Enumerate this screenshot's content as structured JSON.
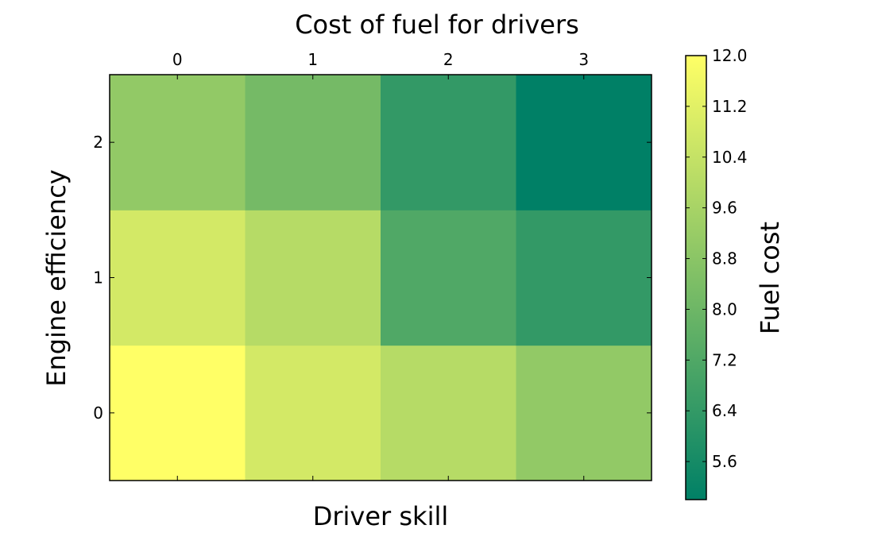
{
  "chart_data": {
    "type": "heatmap",
    "title": "Cost of fuel for drivers",
    "xlabel": "Driver skill",
    "ylabel": "Engine efficiency",
    "x_categories": [
      "0",
      "1",
      "2",
      "3"
    ],
    "y_categories": [
      "0",
      "1",
      "2"
    ],
    "values": [
      [
        12.0,
        10.8,
        10.0,
        9.0
      ],
      [
        10.8,
        10.0,
        7.2,
        6.4
      ],
      [
        9.0,
        8.2,
        6.4,
        5.0
      ]
    ],
    "colorbar": {
      "label": "Fuel cost",
      "min": 5.0,
      "max": 12.0,
      "ticks": [
        "5.6",
        "6.4",
        "7.2",
        "8.0",
        "8.8",
        "9.6",
        "10.4",
        "11.2",
        "12.0"
      ],
      "colormap": "summer",
      "low_color": "#008066",
      "high_color": "#ffff66"
    },
    "x_axis_position": "top",
    "grid": false
  }
}
